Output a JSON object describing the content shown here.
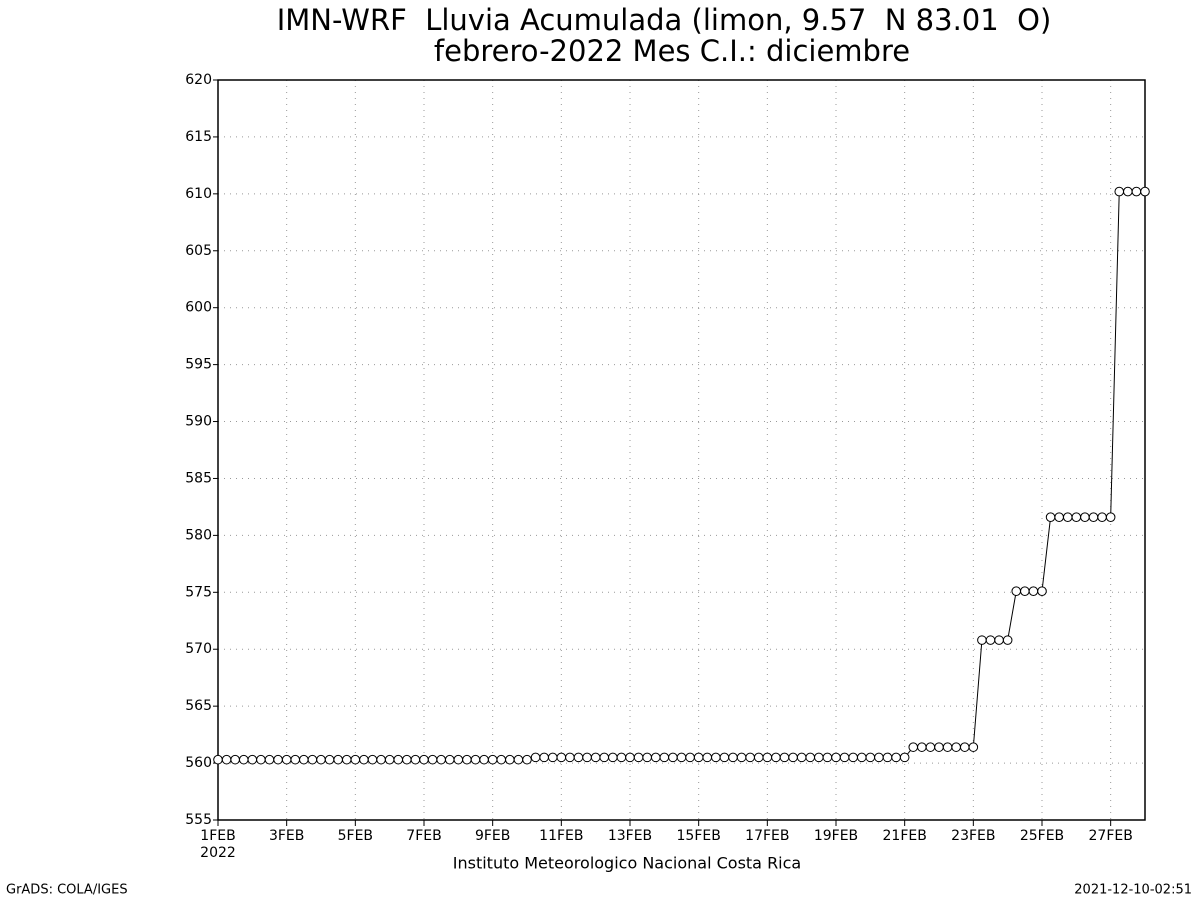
{
  "chart_data": {
    "type": "line",
    "title": "IMN-WRF  Lluvia Acumulada (limon, 9.57  N 83.01  O)",
    "subtitle": "febrero-2022 Mes C.I.: diciembre",
    "xlabel": "Instituto Meteorologico Nacional Costa Rica",
    "x_year": "2022",
    "footer_left": "GrADS: COLA/IGES",
    "footer_right": "2021-12-10-02:51",
    "color": "#000000",
    "grid": true,
    "xlim": [
      0,
      27
    ],
    "ylim": [
      555,
      620
    ],
    "yticks": [
      555,
      560,
      565,
      570,
      575,
      580,
      585,
      590,
      595,
      600,
      605,
      610,
      615,
      620
    ],
    "xticks": [
      {
        "value": 0,
        "label": "1FEB"
      },
      {
        "value": 2,
        "label": "3FEB"
      },
      {
        "value": 4,
        "label": "5FEB"
      },
      {
        "value": 6,
        "label": "7FEB"
      },
      {
        "value": 8,
        "label": "9FEB"
      },
      {
        "value": 10,
        "label": "11FEB"
      },
      {
        "value": 12,
        "label": "13FEB"
      },
      {
        "value": 14,
        "label": "15FEB"
      },
      {
        "value": 16,
        "label": "17FEB"
      },
      {
        "value": 18,
        "label": "19FEB"
      },
      {
        "value": 20,
        "label": "21FEB"
      },
      {
        "value": 22,
        "label": "23FEB"
      },
      {
        "value": 24,
        "label": "25FEB"
      },
      {
        "value": 26,
        "label": "27FEB"
      }
    ],
    "x": [
      0,
      0.25,
      0.5,
      0.75,
      1,
      1.25,
      1.5,
      1.75,
      2,
      2.25,
      2.5,
      2.75,
      3,
      3.25,
      3.5,
      3.75,
      4,
      4.25,
      4.5,
      4.75,
      5,
      5.25,
      5.5,
      5.75,
      6,
      6.25,
      6.5,
      6.75,
      7,
      7.25,
      7.5,
      7.75,
      8,
      8.25,
      8.5,
      8.75,
      9,
      9.25,
      9.5,
      9.75,
      10,
      10.25,
      10.5,
      10.75,
      11,
      11.25,
      11.5,
      11.75,
      12,
      12.25,
      12.5,
      12.75,
      13,
      13.25,
      13.5,
      13.75,
      14,
      14.25,
      14.5,
      14.75,
      15,
      15.25,
      15.5,
      15.75,
      16,
      16.25,
      16.5,
      16.75,
      17,
      17.25,
      17.5,
      17.75,
      18,
      18.25,
      18.5,
      18.75,
      19,
      19.25,
      19.5,
      19.75,
      20,
      20.25,
      20.5,
      20.75,
      21,
      21.25,
      21.5,
      21.75,
      22,
      22.25,
      22.5,
      22.75,
      23,
      23.25,
      23.5,
      23.75,
      24,
      24.25,
      24.5,
      24.75,
      25,
      25.25,
      25.5,
      25.75,
      26,
      26.25,
      26.5,
      26.75,
      27
    ],
    "values": [
      560.3,
      560.3,
      560.3,
      560.3,
      560.3,
      560.3,
      560.3,
      560.3,
      560.3,
      560.3,
      560.3,
      560.3,
      560.3,
      560.3,
      560.3,
      560.3,
      560.3,
      560.3,
      560.3,
      560.3,
      560.3,
      560.3,
      560.3,
      560.3,
      560.3,
      560.3,
      560.3,
      560.3,
      560.3,
      560.3,
      560.3,
      560.3,
      560.3,
      560.3,
      560.3,
      560.3,
      560.3,
      560.5,
      560.5,
      560.5,
      560.5,
      560.5,
      560.5,
      560.5,
      560.5,
      560.5,
      560.5,
      560.5,
      560.5,
      560.5,
      560.5,
      560.5,
      560.5,
      560.5,
      560.5,
      560.5,
      560.5,
      560.5,
      560.5,
      560.5,
      560.5,
      560.5,
      560.5,
      560.5,
      560.5,
      560.5,
      560.5,
      560.5,
      560.5,
      560.5,
      560.5,
      560.5,
      560.5,
      560.5,
      560.5,
      560.5,
      560.5,
      560.5,
      560.5,
      560.5,
      560.5,
      561.4,
      561.4,
      561.4,
      561.4,
      561.4,
      561.4,
      561.4,
      561.4,
      570.8,
      570.8,
      570.8,
      570.8,
      575.1,
      575.1,
      575.1,
      575.1,
      581.6,
      581.6,
      581.6,
      581.6,
      581.6,
      581.6,
      581.6,
      581.6,
      610.2,
      610.2,
      610.2,
      610.2
    ]
  }
}
